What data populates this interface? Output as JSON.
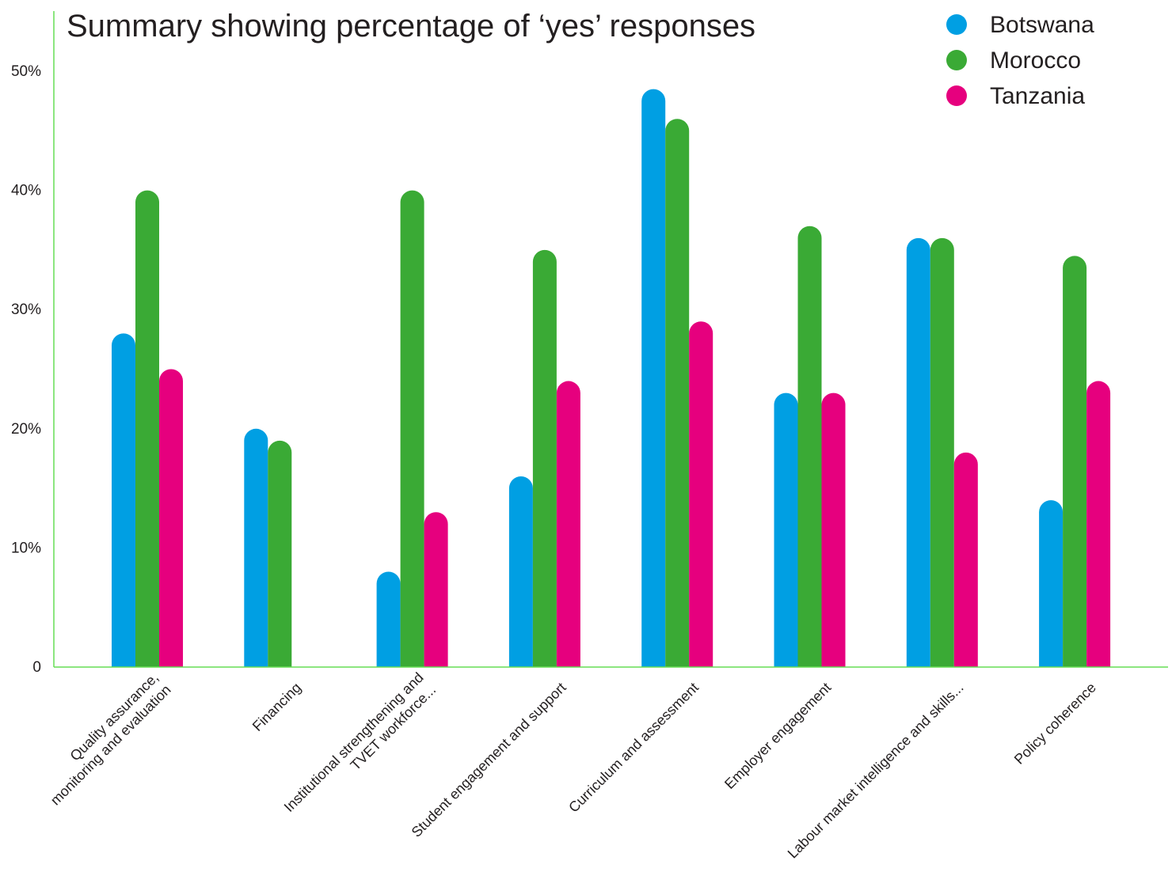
{
  "chart_data": {
    "type": "bar",
    "title": "Summary showing percentage of ‘yes’ responses",
    "xlabel": "",
    "ylabel": "",
    "ylim": [
      0,
      50
    ],
    "yticks": [
      {
        "value": 0,
        "label": "0"
      },
      {
        "value": 10,
        "label": "10%"
      },
      {
        "value": 20,
        "label": "20%"
      },
      {
        "value": 30,
        "label": "30%"
      },
      {
        "value": 40,
        "label": "40%"
      },
      {
        "value": 50,
        "label": "50%"
      }
    ],
    "grid": false,
    "legend_position": "top-right",
    "categories": [
      [
        "Quality assurance,",
        "monitoring and evaluation"
      ],
      [
        "Financing"
      ],
      [
        "Institutional strengthening and",
        "TVET workforce..."
      ],
      [
        "Student engagement and support"
      ],
      [
        "Curriculum and assessment"
      ],
      [
        "Employer engagement"
      ],
      [
        "Labour market intelligence and skills..."
      ],
      [
        "Policy coherence"
      ]
    ],
    "series": [
      {
        "name": "Botswana",
        "color": "#009fe3",
        "values": [
          28,
          20,
          8,
          16,
          48.5,
          23,
          36,
          14
        ]
      },
      {
        "name": "Morocco",
        "color": "#3aaa35",
        "values": [
          40,
          19,
          40,
          35,
          46,
          37,
          36,
          34.5
        ]
      },
      {
        "name": "Tanzania",
        "color": "#e6007e",
        "values": [
          25,
          null,
          13,
          24,
          29,
          23,
          18,
          24
        ]
      }
    ],
    "axis_color": "#66dd55"
  }
}
